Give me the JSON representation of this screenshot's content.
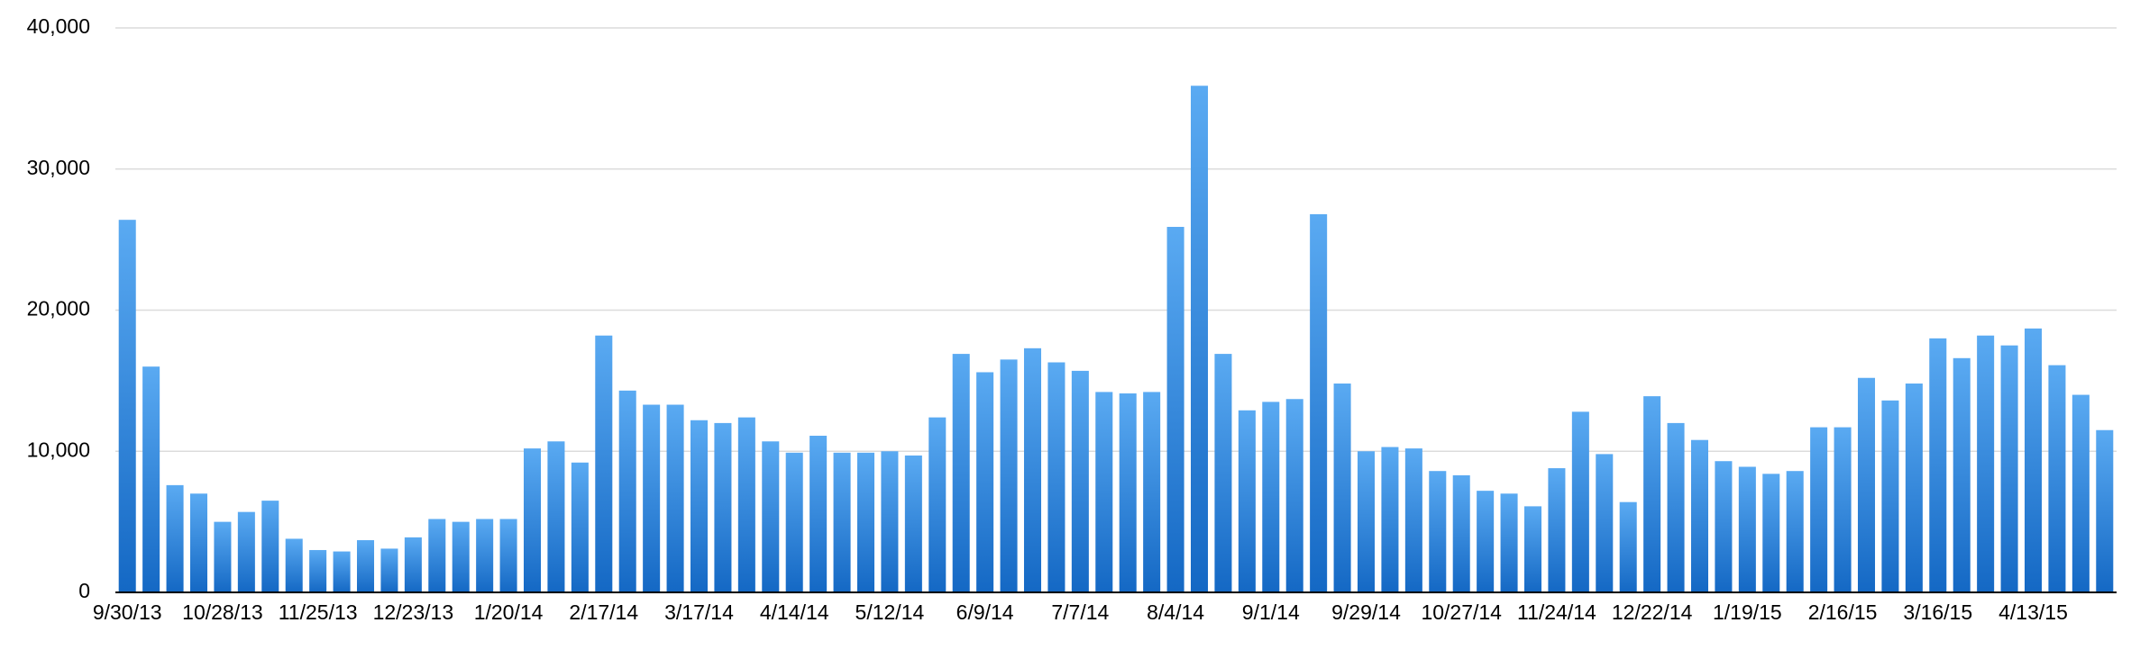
{
  "chart_data": {
    "type": "bar",
    "categories": [
      "9/30/13",
      null,
      null,
      null,
      "10/28/13",
      null,
      null,
      null,
      "11/25/13",
      null,
      null,
      null,
      "12/23/13",
      null,
      null,
      null,
      "1/20/14",
      null,
      null,
      null,
      "2/17/14",
      null,
      null,
      null,
      "3/17/14",
      null,
      null,
      null,
      "4/14/14",
      null,
      null,
      null,
      "5/12/14",
      null,
      null,
      null,
      "6/9/14",
      null,
      null,
      null,
      "7/7/14",
      null,
      null,
      null,
      "8/4/14",
      null,
      null,
      null,
      "9/1/14",
      null,
      null,
      null,
      "9/29/14",
      null,
      null,
      null,
      "10/27/14",
      null,
      null,
      null,
      "11/24/14",
      null,
      null,
      null,
      "12/22/14",
      null,
      null,
      null,
      "1/19/15",
      null,
      null,
      null,
      "2/16/15",
      null,
      null,
      null,
      "3/16/15",
      null,
      null,
      null,
      "4/13/15",
      null,
      null,
      null
    ],
    "values": [
      26400,
      16000,
      7600,
      7000,
      5000,
      5700,
      6500,
      3800,
      3000,
      2900,
      3700,
      3100,
      3900,
      5200,
      5000,
      5200,
      5200,
      10200,
      10700,
      9200,
      18200,
      14300,
      13300,
      13300,
      12200,
      12000,
      12400,
      10700,
      9900,
      11100,
      9900,
      9900,
      10000,
      9700,
      12400,
      16900,
      15600,
      16500,
      17300,
      16300,
      15700,
      14200,
      14100,
      14200,
      25900,
      35900,
      16900,
      12900,
      13500,
      13700,
      26800,
      14800,
      10000,
      10300,
      10200,
      8600,
      8300,
      7200,
      7000,
      6100,
      8800,
      12800,
      9800,
      6400,
      13900,
      12000,
      10800,
      9300,
      8900,
      8400,
      8600,
      11700,
      11700,
      15200,
      13600,
      14800,
      18000,
      16600,
      18200,
      17500,
      18700,
      16100,
      14000,
      11500
    ],
    "color": "#5aaaf2",
    "ylim": [
      0,
      40000
    ],
    "yticks": [
      0,
      {
        "value": 10000,
        "label": "10,000"
      },
      {
        "value": 20000,
        "label": "20,000"
      },
      {
        "value": 30000,
        "label": "30,000"
      },
      {
        "value": 40000,
        "label": "40,000"
      }
    ],
    "grid": true
  }
}
